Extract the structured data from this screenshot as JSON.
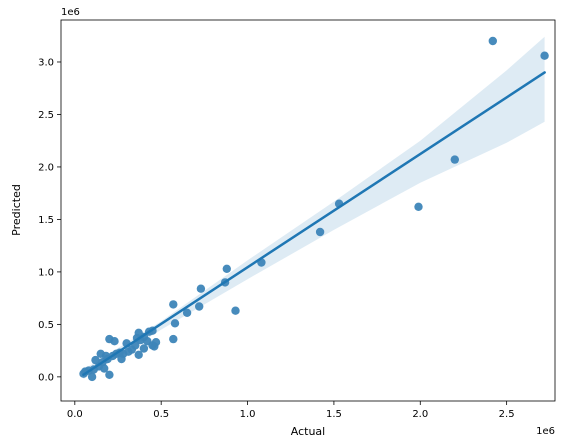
{
  "chart_data": {
    "type": "scatter",
    "xlabel": "Actual",
    "ylabel": "Predicted",
    "x_offset_label": "1e6",
    "y_offset_label": "1e6",
    "xlim": [
      -0.08,
      2.78
    ],
    "ylim": [
      -0.23,
      3.4
    ],
    "xticks": [
      0.0,
      0.5,
      1.0,
      1.5,
      2.0,
      2.5
    ],
    "xtick_labels": [
      "0.0",
      "0.5",
      "1.0",
      "1.5",
      "2.0",
      "2.5"
    ],
    "yticks": [
      0.0,
      0.5,
      1.0,
      1.5,
      2.0,
      2.5,
      3.0
    ],
    "ytick_labels": [
      "0.0",
      "0.5",
      "1.0",
      "1.5",
      "2.0",
      "2.5",
      "3.0"
    ],
    "grid": false,
    "units_multiplier": 1000000,
    "colors": {
      "points": "#3d85b8",
      "line": "#1f77b4",
      "band": "#1f77b4"
    },
    "points": [
      {
        "x": 0.05,
        "y": 0.03
      },
      {
        "x": 0.06,
        "y": 0.05
      },
      {
        "x": 0.08,
        "y": 0.06
      },
      {
        "x": 0.1,
        "y": 0.0
      },
      {
        "x": 0.11,
        "y": 0.07
      },
      {
        "x": 0.12,
        "y": 0.16
      },
      {
        "x": 0.14,
        "y": 0.1
      },
      {
        "x": 0.15,
        "y": 0.22
      },
      {
        "x": 0.16,
        "y": 0.14
      },
      {
        "x": 0.17,
        "y": 0.08
      },
      {
        "x": 0.18,
        "y": 0.2
      },
      {
        "x": 0.19,
        "y": 0.17
      },
      {
        "x": 0.2,
        "y": 0.36
      },
      {
        "x": 0.2,
        "y": 0.02
      },
      {
        "x": 0.22,
        "y": 0.2
      },
      {
        "x": 0.23,
        "y": 0.34
      },
      {
        "x": 0.24,
        "y": 0.22
      },
      {
        "x": 0.26,
        "y": 0.23
      },
      {
        "x": 0.27,
        "y": 0.17
      },
      {
        "x": 0.28,
        "y": 0.22
      },
      {
        "x": 0.3,
        "y": 0.32
      },
      {
        "x": 0.31,
        "y": 0.24
      },
      {
        "x": 0.33,
        "y": 0.26
      },
      {
        "x": 0.35,
        "y": 0.3
      },
      {
        "x": 0.36,
        "y": 0.37
      },
      {
        "x": 0.37,
        "y": 0.42
      },
      {
        "x": 0.37,
        "y": 0.21
      },
      {
        "x": 0.38,
        "y": 0.35
      },
      {
        "x": 0.4,
        "y": 0.38
      },
      {
        "x": 0.4,
        "y": 0.27
      },
      {
        "x": 0.42,
        "y": 0.34
      },
      {
        "x": 0.43,
        "y": 0.43
      },
      {
        "x": 0.45,
        "y": 0.44
      },
      {
        "x": 0.45,
        "y": 0.3
      },
      {
        "x": 0.46,
        "y": 0.29
      },
      {
        "x": 0.47,
        "y": 0.33
      },
      {
        "x": 0.57,
        "y": 0.69
      },
      {
        "x": 0.57,
        "y": 0.36
      },
      {
        "x": 0.58,
        "y": 0.51
      },
      {
        "x": 0.65,
        "y": 0.61
      },
      {
        "x": 0.72,
        "y": 0.67
      },
      {
        "x": 0.73,
        "y": 0.84
      },
      {
        "x": 0.87,
        "y": 0.9
      },
      {
        "x": 0.88,
        "y": 1.03
      },
      {
        "x": 0.93,
        "y": 0.63
      },
      {
        "x": 1.08,
        "y": 1.09
      },
      {
        "x": 1.42,
        "y": 1.38
      },
      {
        "x": 1.53,
        "y": 1.65
      },
      {
        "x": 1.99,
        "y": 1.62
      },
      {
        "x": 2.2,
        "y": 2.07
      },
      {
        "x": 2.42,
        "y": 3.2
      },
      {
        "x": 2.72,
        "y": 3.06
      }
    ],
    "regression_line": {
      "x": [
        0.05,
        2.72
      ],
      "y": [
        0.02,
        2.9
      ]
    },
    "confidence_band": [
      {
        "x": 0.05,
        "lo": -0.02,
        "hi": 0.07
      },
      {
        "x": 0.5,
        "lo": 0.45,
        "hi": 0.53
      },
      {
        "x": 1.0,
        "lo": 0.93,
        "hi": 1.11
      },
      {
        "x": 1.5,
        "lo": 1.4,
        "hi": 1.67
      },
      {
        "x": 2.0,
        "lo": 1.85,
        "hi": 2.25
      },
      {
        "x": 2.5,
        "lo": 2.23,
        "hi": 2.92
      },
      {
        "x": 2.72,
        "lo": 2.43,
        "hi": 3.24
      }
    ]
  }
}
